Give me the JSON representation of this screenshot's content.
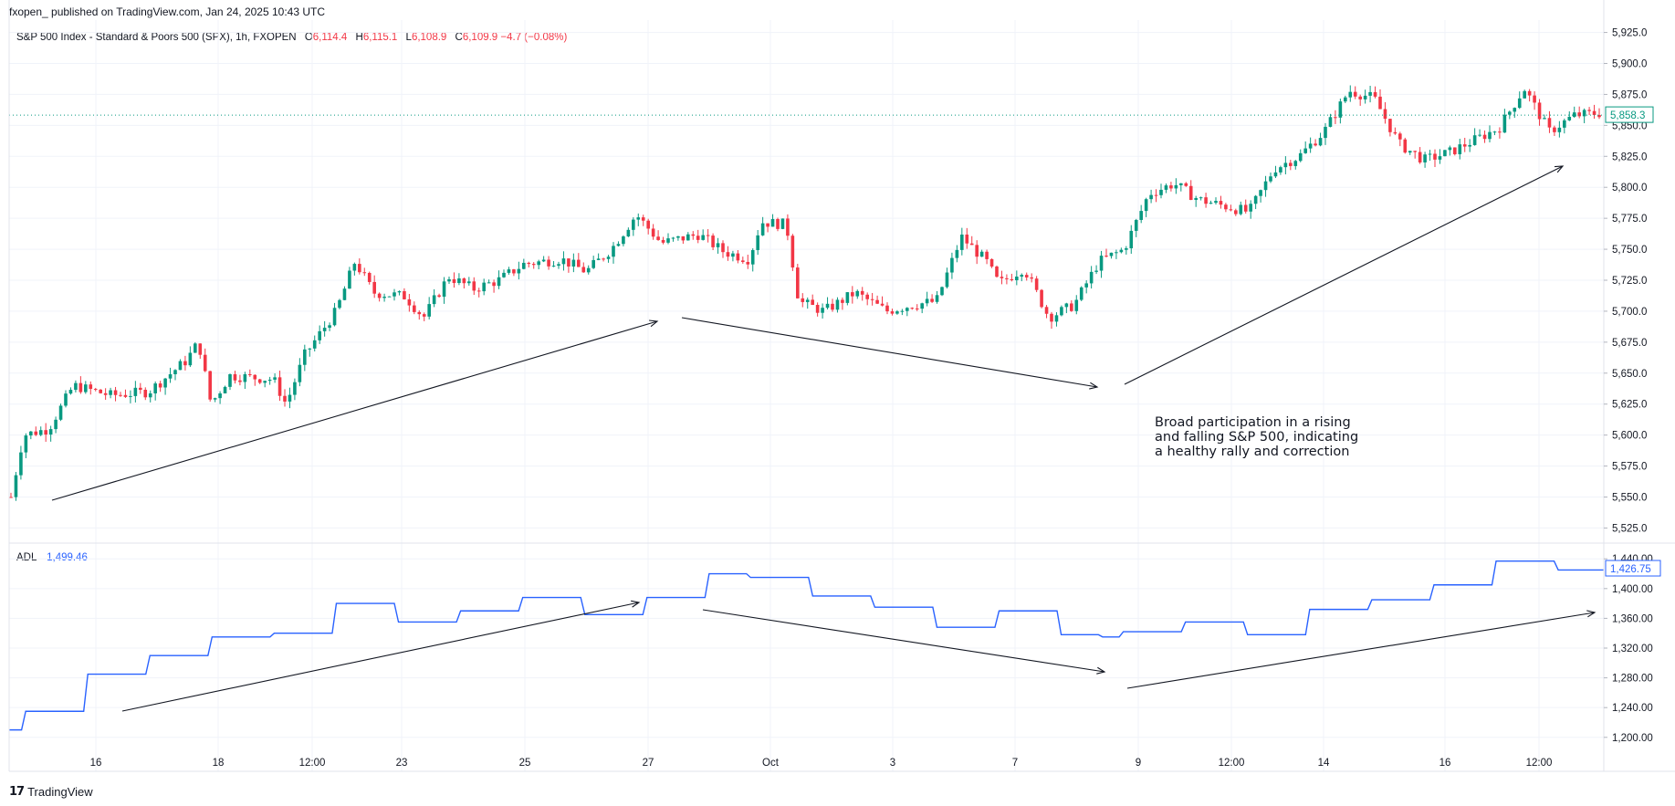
{
  "header": {
    "published_by": "fxopen_ published on TradingView.com, Jan 24, 2025 10:43 UTC"
  },
  "legend": {
    "symbol": "S&P 500 Index - Standard & Poors 500 (SPX), 1h, FXOPEN",
    "open_label": "O",
    "open": "6,114.4",
    "high_label": "H",
    "high": "6,115.1",
    "low_label": "L",
    "low": "6,108.9",
    "close_label": "C",
    "close": "6,109.9",
    "change": "−4.7 (−0.08%)",
    "adl_label": "ADL",
    "adl_value": "1,499.46"
  },
  "footer": {
    "brand": "TradingView"
  },
  "colors": {
    "up": "#089981",
    "down": "#f23645",
    "adl": "#2962ff",
    "grid": "#f0f3fa"
  },
  "chart_data": [
    {
      "type": "candlestick",
      "interval": "1h",
      "x_ticks": [
        "16",
        "18",
        "12:00",
        "23",
        "25",
        "27",
        "Oct",
        "3",
        "7",
        "9",
        "12:00",
        "14",
        "16",
        "12:00"
      ],
      "y_ticks": [
        "5,525.0",
        "5,550.0",
        "5,575.0",
        "5,600.0",
        "5,625.0",
        "5,650.0",
        "5,675.0",
        "5,700.0",
        "5,725.0",
        "5,750.0",
        "5,775.0",
        "5,800.0",
        "5,825.0",
        "5,850.0",
        "5,875.0",
        "5,900.0",
        "5,925.0"
      ],
      "ylim": [
        5515,
        5935
      ],
      "last_price_label": "5,858.3",
      "price_path": [
        [
          0,
          5550
        ],
        [
          2,
          5600
        ],
        [
          6,
          5605
        ],
        [
          10,
          5640
        ],
        [
          16,
          5632
        ],
        [
          22,
          5635
        ],
        [
          28,
          5660
        ],
        [
          30,
          5675
        ],
        [
          32,
          5625
        ],
        [
          35,
          5648
        ],
        [
          42,
          5645
        ],
        [
          44,
          5625
        ],
        [
          47,
          5665
        ],
        [
          52,
          5700
        ],
        [
          55,
          5740
        ],
        [
          58,
          5715
        ],
        [
          63,
          5712
        ],
        [
          66,
          5695
        ],
        [
          70,
          5728
        ],
        [
          74,
          5718
        ],
        [
          78,
          5725
        ],
        [
          82,
          5738
        ],
        [
          88,
          5742
        ],
        [
          92,
          5732
        ],
        [
          96,
          5750
        ],
        [
          100,
          5778
        ],
        [
          104,
          5755
        ],
        [
          110,
          5762
        ],
        [
          114,
          5748
        ],
        [
          118,
          5742
        ],
        [
          120,
          5772
        ],
        [
          124,
          5770
        ],
        [
          126,
          5708
        ],
        [
          130,
          5700
        ],
        [
          135,
          5715
        ],
        [
          140,
          5700
        ],
        [
          144,
          5705
        ],
        [
          148,
          5708
        ],
        [
          152,
          5760
        ],
        [
          156,
          5740
        ],
        [
          158,
          5722
        ],
        [
          162,
          5735
        ],
        [
          166,
          5695
        ],
        [
          170,
          5705
        ],
        [
          174,
          5740
        ],
        [
          178,
          5750
        ],
        [
          182,
          5795
        ],
        [
          186,
          5803
        ],
        [
          190,
          5790
        ],
        [
          194,
          5785
        ],
        [
          198,
          5780
        ],
        [
          202,
          5815
        ],
        [
          206,
          5825
        ],
        [
          210,
          5845
        ],
        [
          214,
          5878
        ],
        [
          218,
          5872
        ],
        [
          222,
          5835
        ],
        [
          226,
          5822
        ],
        [
          230,
          5828
        ],
        [
          234,
          5838
        ],
        [
          238,
          5848
        ],
        [
          242,
          5880
        ],
        [
          246,
          5845
        ],
        [
          250,
          5858
        ],
        [
          254,
          5860
        ]
      ],
      "annotation": [
        "Broad participation in a rising",
        "and falling S&P 500, indicating",
        "a healthy rally and correction"
      ]
    },
    {
      "type": "line",
      "name": "ADL",
      "y_ticks": [
        "1,200.00",
        "1,240.00",
        "1,280.00",
        "1,320.00",
        "1,360.00",
        "1,400.00",
        "1,440.00"
      ],
      "ylim": [
        1185,
        1455
      ],
      "last_value_label": "1,426.75",
      "values": [
        1210,
        1235,
        1235,
        1235,
        1285,
        1285,
        1285,
        1310,
        1310,
        1310,
        1335,
        1335,
        1335,
        1340,
        1340,
        1340,
        1380,
        1380,
        1380,
        1355,
        1355,
        1355,
        1370,
        1370,
        1370,
        1388,
        1388,
        1388,
        1365,
        1365,
        1365,
        1388,
        1388,
        1388,
        1420,
        1420,
        1415,
        1415,
        1415,
        1390,
        1390,
        1390,
        1375,
        1375,
        1375,
        1348,
        1348,
        1348,
        1370,
        1370,
        1370,
        1338,
        1338,
        1335,
        1342,
        1342,
        1342,
        1355,
        1355,
        1355,
        1338,
        1338,
        1338,
        1372,
        1372,
        1372,
        1385,
        1385,
        1385,
        1405,
        1405,
        1405,
        1437,
        1437,
        1437,
        1425,
        1425,
        1425
      ]
    }
  ]
}
